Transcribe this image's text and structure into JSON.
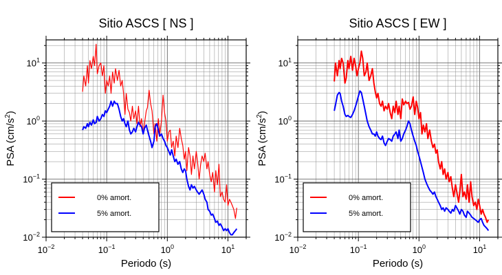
{
  "chart_data": [
    {
      "type": "line",
      "title": "Sitio ASCS [ NS ]",
      "xlabel": "Periodo (s)",
      "ylabel_main": "PSA (cm/s",
      "ylabel_sup": "2",
      "ylabel_end": ")",
      "xscale": "log",
      "yscale": "log",
      "xlim": [
        0.01,
        20
      ],
      "ylim": [
        0.01,
        25
      ],
      "grid": true,
      "legend_position": "bottom-left",
      "x_ticks": [
        {
          "mantissa": "10",
          "exp": "−2"
        },
        {
          "mantissa": "10",
          "exp": "−1"
        },
        {
          "mantissa": "10",
          "exp": "0"
        },
        {
          "mantissa": "10",
          "exp": "1"
        }
      ],
      "y_ticks": [
        {
          "mantissa": "10",
          "exp": "−2"
        },
        {
          "mantissa": "10",
          "exp": "−1"
        },
        {
          "mantissa": "10",
          "exp": "0"
        },
        {
          "mantissa": "10",
          "exp": "1"
        }
      ],
      "series": [
        {
          "name": "0% amort.",
          "color": "#ff0000",
          "x": [
            0.04,
            0.042,
            0.045,
            0.048,
            0.05,
            0.053,
            0.056,
            0.06,
            0.063,
            0.067,
            0.07,
            0.075,
            0.08,
            0.085,
            0.09,
            0.095,
            0.1,
            0.106,
            0.112,
            0.118,
            0.125,
            0.133,
            0.14,
            0.15,
            0.16,
            0.17,
            0.18,
            0.19,
            0.2,
            0.21,
            0.224,
            0.237,
            0.25,
            0.265,
            0.28,
            0.3,
            0.315,
            0.335,
            0.355,
            0.375,
            0.4,
            0.42,
            0.45,
            0.47,
            0.5,
            0.53,
            0.56,
            0.6,
            0.63,
            0.67,
            0.71,
            0.75,
            0.8,
            0.85,
            0.9,
            0.95,
            1.0,
            1.06,
            1.12,
            1.18,
            1.25,
            1.33,
            1.4,
            1.5,
            1.6,
            1.7,
            1.8,
            1.9,
            2.0,
            2.1,
            2.24,
            2.37,
            2.5,
            2.65,
            2.8,
            3.0,
            3.15,
            3.35,
            3.55,
            3.75,
            4.0,
            4.2,
            4.5,
            4.7,
            5.0,
            5.3,
            5.6,
            6.0,
            6.3,
            6.7,
            7.1,
            7.5,
            8.0,
            8.5,
            9.0,
            9.5,
            10.0,
            10.6,
            11.2,
            11.8,
            12.5,
            13.3,
            14.0
          ],
          "y": [
            3.2,
            6,
            4,
            9,
            4.5,
            11,
            8,
            13,
            9,
            21,
            6.5,
            9,
            10,
            6,
            9,
            3,
            5,
            4,
            6,
            3,
            7,
            4.5,
            8,
            5,
            7.5,
            4,
            5,
            3,
            1.3,
            3,
            1.6,
            1.4,
            1.0,
            1.8,
            1.1,
            1.5,
            0.9,
            1.8,
            0.8,
            1.1,
            0.6,
            0.9,
            1.5,
            1.7,
            3.4,
            2.0,
            1.5,
            0.6,
            0.9,
            0.45,
            1.1,
            0.6,
            1.0,
            2.8,
            1.4,
            1.0,
            0.45,
            0.65,
            0.7,
            0.35,
            0.45,
            0.25,
            0.55,
            0.35,
            0.75,
            0.5,
            0.38,
            0.22,
            0.3,
            0.14,
            0.35,
            0.25,
            0.12,
            0.25,
            0.15,
            0.3,
            0.2,
            0.1,
            0.18,
            0.25,
            0.2,
            0.28,
            0.15,
            0.2,
            0.12,
            0.09,
            0.13,
            0.06,
            0.14,
            0.08,
            0.18,
            0.05,
            0.06,
            0.045,
            0.04,
            0.08,
            0.035,
            0.045,
            0.04,
            0.035,
            0.03,
            0.021,
            0.032
          ],
          "width": 1.2
        },
        {
          "name": "5% amort.",
          "color": "#0000ff",
          "x": [
            0.04,
            0.042,
            0.045,
            0.048,
            0.05,
            0.053,
            0.056,
            0.06,
            0.063,
            0.067,
            0.07,
            0.075,
            0.08,
            0.085,
            0.09,
            0.095,
            0.1,
            0.106,
            0.112,
            0.118,
            0.125,
            0.133,
            0.14,
            0.15,
            0.16,
            0.17,
            0.18,
            0.19,
            0.2,
            0.21,
            0.224,
            0.237,
            0.25,
            0.265,
            0.28,
            0.3,
            0.315,
            0.335,
            0.355,
            0.375,
            0.4,
            0.42,
            0.45,
            0.47,
            0.5,
            0.53,
            0.56,
            0.6,
            0.63,
            0.67,
            0.71,
            0.75,
            0.8,
            0.85,
            0.9,
            0.95,
            1.0,
            1.06,
            1.12,
            1.18,
            1.25,
            1.33,
            1.4,
            1.5,
            1.6,
            1.7,
            1.8,
            1.9,
            2.0,
            2.1,
            2.24,
            2.37,
            2.5,
            2.65,
            2.8,
            3.0,
            3.15,
            3.35,
            3.55,
            3.75,
            4.0,
            4.2,
            4.5,
            4.7,
            5.0,
            5.3,
            5.6,
            6.0,
            6.3,
            6.7,
            7.1,
            7.5,
            8.0,
            8.5,
            9.0,
            9.5,
            10.0,
            10.6,
            11.2,
            11.8,
            12.5,
            13.3,
            14.0
          ],
          "y": [
            0.7,
            0.8,
            0.75,
            0.9,
            0.8,
            0.95,
            0.85,
            1.05,
            0.9,
            0.95,
            1.2,
            1.0,
            1.1,
            1.3,
            1.2,
            1.5,
            1.4,
            1.6,
            1.8,
            2.2,
            1.8,
            2.2,
            2.0,
            2.0,
            1.6,
            1.2,
            1.0,
            1.1,
            0.9,
            0.8,
            1.0,
            0.7,
            0.6,
            0.65,
            0.75,
            0.65,
            0.8,
            0.95,
            0.85,
            0.8,
            0.6,
            0.75,
            0.85,
            0.7,
            0.55,
            0.45,
            0.35,
            0.45,
            0.8,
            0.9,
            0.7,
            0.55,
            0.6,
            0.5,
            0.45,
            0.38,
            0.35,
            0.3,
            0.26,
            0.32,
            0.25,
            0.2,
            0.22,
            0.18,
            0.2,
            0.15,
            0.13,
            0.15,
            0.14,
            0.1,
            0.075,
            0.065,
            0.08,
            0.07,
            0.075,
            0.065,
            0.06,
            0.055,
            0.06,
            0.065,
            0.055,
            0.045,
            0.04,
            0.03,
            0.028,
            0.024,
            0.025,
            0.021,
            0.018,
            0.019,
            0.016,
            0.017,
            0.015,
            0.013,
            0.014,
            0.013,
            0.014,
            0.012,
            0.011,
            0.011,
            0.012,
            0.013,
            0.014
          ],
          "width": 2
        }
      ]
    },
    {
      "type": "line",
      "title": "Sitio ASCS [ EW ]",
      "xlabel": "Periodo (s)",
      "ylabel_main": "PSA (cm/s",
      "ylabel_sup": "2",
      "ylabel_end": ")",
      "xscale": "log",
      "yscale": "log",
      "xlim": [
        0.01,
        20
      ],
      "ylim": [
        0.01,
        25
      ],
      "grid": true,
      "legend_position": "bottom-left",
      "x_ticks": [
        {
          "mantissa": "10",
          "exp": "−2"
        },
        {
          "mantissa": "10",
          "exp": "−1"
        },
        {
          "mantissa": "10",
          "exp": "0"
        },
        {
          "mantissa": "10",
          "exp": "1"
        }
      ],
      "y_ticks": [
        {
          "mantissa": "10",
          "exp": "−2"
        },
        {
          "mantissa": "10",
          "exp": "−1"
        },
        {
          "mantissa": "10",
          "exp": "0"
        },
        {
          "mantissa": "10",
          "exp": "1"
        }
      ],
      "series": [
        {
          "name": "0% amort.",
          "color": "#ff0000",
          "x": [
            0.04,
            0.042,
            0.045,
            0.048,
            0.05,
            0.053,
            0.056,
            0.06,
            0.063,
            0.067,
            0.07,
            0.075,
            0.08,
            0.085,
            0.09,
            0.095,
            0.1,
            0.106,
            0.112,
            0.118,
            0.125,
            0.133,
            0.14,
            0.15,
            0.16,
            0.17,
            0.18,
            0.19,
            0.2,
            0.21,
            0.224,
            0.237,
            0.25,
            0.265,
            0.28,
            0.3,
            0.315,
            0.335,
            0.355,
            0.375,
            0.4,
            0.42,
            0.45,
            0.47,
            0.5,
            0.53,
            0.56,
            0.6,
            0.63,
            0.67,
            0.71,
            0.75,
            0.8,
            0.85,
            0.9,
            0.95,
            1.0,
            1.06,
            1.12,
            1.18,
            1.25,
            1.33,
            1.4,
            1.5,
            1.6,
            1.7,
            1.8,
            1.9,
            2.0,
            2.1,
            2.24,
            2.37,
            2.5,
            2.65,
            2.8,
            3.0,
            3.15,
            3.35,
            3.55,
            3.75,
            4.0,
            4.2,
            4.5,
            4.7,
            5.0,
            5.3,
            5.6,
            6.0,
            6.3,
            6.7,
            7.1,
            7.5,
            8.0,
            8.5,
            9.0,
            9.5,
            10.0,
            10.6,
            11.2,
            11.8,
            12.5,
            13.3,
            14.0
          ],
          "y": [
            4.8,
            10,
            6,
            11,
            8,
            12,
            10,
            4.5,
            5.5,
            11,
            8,
            13,
            7.5,
            12,
            9,
            6,
            8,
            10,
            16,
            12,
            6,
            7,
            10,
            5,
            6,
            8,
            4.5,
            3.2,
            2.5,
            3,
            2,
            1.8,
            2.2,
            1.5,
            1.8,
            1.6,
            2,
            1.4,
            1.1,
            1.8,
            1.4,
            2.2,
            1.3,
            1.8,
            1.1,
            2.4,
            1.9,
            2.2,
            2.0,
            2.1,
            1.6,
            1.8,
            2.6,
            1.3,
            2.2,
            1.7,
            1.1,
            1.4,
            0.6,
            0.85,
            0.65,
            0.9,
            0.5,
            0.7,
            0.45,
            0.35,
            0.4,
            0.28,
            0.32,
            0.2,
            0.15,
            0.2,
            0.12,
            0.15,
            0.1,
            0.13,
            0.09,
            0.11,
            0.07,
            0.05,
            0.08,
            0.06,
            0.04,
            0.06,
            0.12,
            0.05,
            0.06,
            0.045,
            0.08,
            0.04,
            0.09,
            0.05,
            0.035,
            0.04,
            0.03,
            0.045,
            0.035,
            0.025,
            0.03,
            0.025,
            0.022,
            0.018,
            0.02
          ],
          "width": 2
        },
        {
          "name": "5% amort.",
          "color": "#0000ff",
          "x": [
            0.04,
            0.042,
            0.045,
            0.048,
            0.05,
            0.053,
            0.056,
            0.06,
            0.063,
            0.067,
            0.07,
            0.075,
            0.08,
            0.085,
            0.09,
            0.095,
            0.1,
            0.106,
            0.112,
            0.118,
            0.125,
            0.133,
            0.14,
            0.15,
            0.16,
            0.17,
            0.18,
            0.19,
            0.2,
            0.21,
            0.224,
            0.237,
            0.25,
            0.265,
            0.28,
            0.3,
            0.315,
            0.335,
            0.355,
            0.375,
            0.4,
            0.42,
            0.45,
            0.47,
            0.5,
            0.53,
            0.56,
            0.6,
            0.63,
            0.67,
            0.71,
            0.75,
            0.8,
            0.85,
            0.9,
            0.95,
            1.0,
            1.06,
            1.12,
            1.18,
            1.25,
            1.33,
            1.4,
            1.5,
            1.6,
            1.7,
            1.8,
            1.9,
            2.0,
            2.1,
            2.24,
            2.37,
            2.5,
            2.65,
            2.8,
            3.0,
            3.15,
            3.35,
            3.55,
            3.75,
            4.0,
            4.2,
            4.5,
            4.7,
            5.0,
            5.3,
            5.6,
            6.0,
            6.3,
            6.7,
            7.1,
            7.5,
            8.0,
            8.5,
            9.0,
            9.5,
            10.0,
            10.6,
            11.2,
            11.8,
            12.5,
            13.3,
            14.0
          ],
          "y": [
            1.5,
            1.9,
            2.8,
            3.1,
            3.0,
            2.2,
            1.8,
            1.3,
            1.2,
            1.25,
            1.2,
            1.15,
            1.3,
            1.5,
            1.8,
            2.2,
            2.7,
            3.3,
            3.1,
            2.4,
            1.8,
            1.3,
            1.0,
            0.8,
            0.7,
            0.6,
            0.6,
            0.55,
            0.65,
            0.55,
            0.5,
            0.48,
            0.55,
            0.42,
            0.38,
            0.45,
            0.5,
            0.48,
            0.45,
            0.55,
            0.6,
            0.65,
            0.5,
            0.7,
            0.45,
            0.5,
            0.6,
            0.7,
            0.8,
            1.0,
            0.9,
            0.7,
            0.55,
            0.45,
            0.38,
            0.3,
            0.25,
            0.2,
            0.16,
            0.13,
            0.1,
            0.085,
            0.075,
            0.065,
            0.06,
            0.055,
            0.06,
            0.05,
            0.045,
            0.04,
            0.035,
            0.03,
            0.032,
            0.028,
            0.032,
            0.03,
            0.028,
            0.026,
            0.03,
            0.028,
            0.035,
            0.032,
            0.028,
            0.025,
            0.03,
            0.028,
            0.024,
            0.022,
            0.028,
            0.026,
            0.024,
            0.022,
            0.021,
            0.02,
            0.019,
            0.018,
            0.02,
            0.021,
            0.018,
            0.016,
            0.015,
            0.014,
            0.013
          ],
          "width": 2
        }
      ]
    }
  ]
}
